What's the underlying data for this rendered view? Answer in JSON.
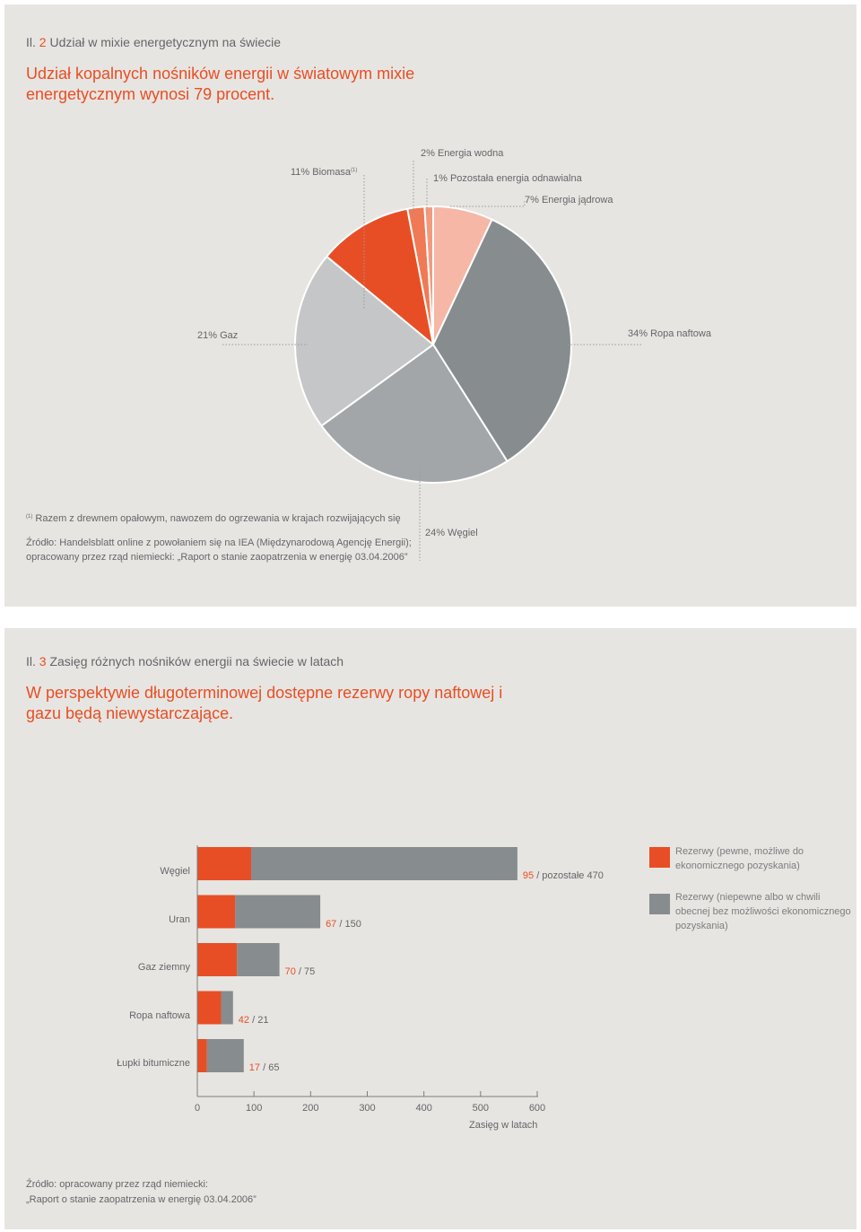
{
  "figure1": {
    "label_prefix": "Il. ",
    "label_num": "2",
    "label_title": "Udział w mixie energetycznym na świecie",
    "headline": "Udział kopalnych nośników energii w światowym mixie energetycznym wynosi 79 procent.",
    "footnote_mark": "(1)",
    "footnote": "Razem z drewnem opałowym, nawozem do ogrzewania w krajach rozwijających się",
    "source_line1": "Źródło: Handelsblatt online z powołaniem się na IEA (Międzynarodową Agencję Energii);",
    "source_line2": "opracowany przez rząd niemiecki: „Raport o stanie zaopatrzenia w energię 03.04.2006”"
  },
  "chart_data": [
    {
      "type": "pie",
      "title": "Udział w mixie energetycznym na świecie",
      "slices": [
        {
          "label": "2% Energia wodna",
          "name": "Energia wodna",
          "value": 2,
          "color": "#ef7a55"
        },
        {
          "label": "1% Pozostała energia odnawialna",
          "name": "Pozostała energia odnawialna",
          "value": 1,
          "color": "#f39a7e"
        },
        {
          "label": "7% Energia jądrowa",
          "name": "Energia jądrowa",
          "value": 7,
          "color": "#f6b7a6"
        },
        {
          "label": "34% Ropa naftowa",
          "name": "Ropa naftowa",
          "value": 34,
          "color": "#878c8f"
        },
        {
          "label": "24% Węgiel",
          "name": "Węgiel",
          "value": 24,
          "color": "#a3a6a9"
        },
        {
          "label": "21% Gaz",
          "name": "Gaz",
          "value": 21,
          "color": "#c4c6c7"
        },
        {
          "label": "11% Biomasa",
          "name": "Biomasa",
          "value": 11,
          "color": "#e84e25",
          "footnote": "(1)"
        }
      ]
    },
    {
      "type": "bar",
      "orientation": "horizontal",
      "stacked": true,
      "title": "Zasięg różnych nośników energii na świecie w latach",
      "xlabel": "Zasięg w latach",
      "xlim": [
        0,
        600
      ],
      "xticks": [
        "0",
        "100",
        "200",
        "300",
        "400",
        "500",
        "600"
      ],
      "categories": [
        "Węgiel",
        "Uran",
        "Gaz ziemny",
        "Ropa naftowa",
        "Łupki bitumiczne"
      ],
      "series": [
        {
          "name": "Rezerwy (pewne, możliwe do ekonomicznego pozyskania)",
          "color": "#e84e25",
          "values": [
            95,
            67,
            70,
            42,
            17
          ]
        },
        {
          "name": "Rezerwy (niepewne albo w chwili obecnej bez możliwości ekonomicznego pozyskania)",
          "color": "#878c8f",
          "values": [
            470,
            150,
            75,
            21,
            65
          ]
        }
      ],
      "value_labels": [
        {
          "first": "95",
          "sep": " / pozostałe ",
          "second": "470"
        },
        {
          "first": "67",
          "sep": " / ",
          "second": "150"
        },
        {
          "first": "70",
          "sep": " / ",
          "second": "75"
        },
        {
          "first": "42",
          "sep": " / ",
          "second": "21"
        },
        {
          "first": "17",
          "sep": " / ",
          "second": "65"
        }
      ]
    }
  ],
  "figure2": {
    "label_prefix": "Il. ",
    "label_num": "3",
    "label_title": "Zasięg różnych nośników energii na świecie w latach",
    "headline": "W perspektywie długoterminowej dostępne rezerwy ropy naftowej i gazu będą niewystarczające.",
    "legend": [
      {
        "text": "Rezerwy (pewne, możliwe do ekonomicznego pozyskania)",
        "color": "#e84e25"
      },
      {
        "text": "Rezerwy (niepewne albo w chwili obecnej bez możliwości ekonomicznego pozyskania)",
        "color": "#878c8f"
      }
    ],
    "source_line1": "Źródło: opracowany przez rząd niemiecki:",
    "source_line2": "„Raport o stanie zaopatrzenia w energię 03.04.2006”"
  }
}
